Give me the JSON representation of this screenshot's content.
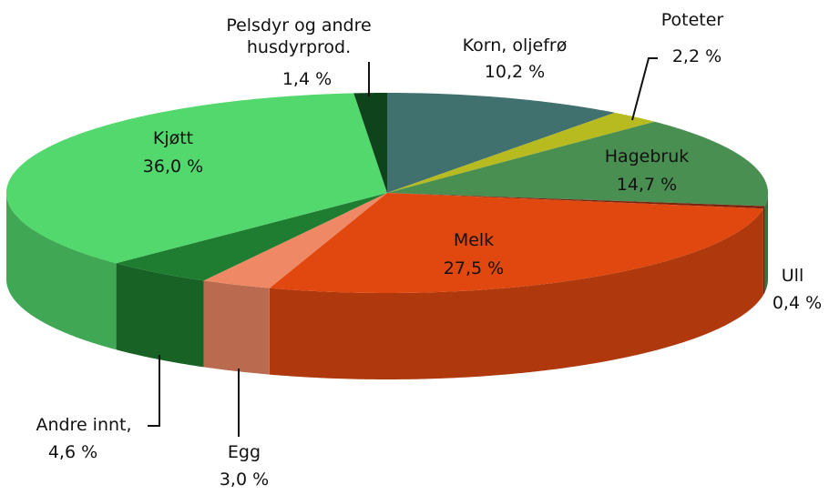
{
  "chart_data": {
    "type": "pie",
    "categories": [
      "Korn, oljefrø",
      "Poteter",
      "Hagebruk",
      "Ull",
      "Melk",
      "Egg",
      "Andre innt,",
      "Kjøtt",
      "Pelsdyr og andre husdyrprod."
    ],
    "values": [
      10.2,
      2.2,
      14.7,
      0.4,
      27.5,
      3.0,
      4.6,
      36.0,
      1.4
    ],
    "value_labels": [
      "10,2 %",
      "2,2 %",
      "14,7 %",
      "0,4 %",
      "27,5 %",
      "3,0 %",
      "4,6 %",
      "36,0 %",
      "1,4 %"
    ],
    "colors": [
      "#41716f",
      "#b7bb1f",
      "#4a8f52",
      "#7a2410",
      "#e0480f",
      "#ee8865",
      "#1f7d31",
      "#52d86d",
      "#0e431c"
    ]
  }
}
